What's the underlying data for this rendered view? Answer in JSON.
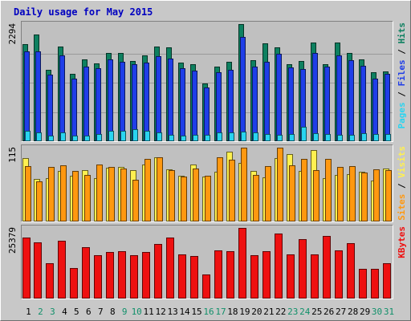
{
  "chart_data": {
    "type": "bar",
    "title": "Daily usage for May 2015",
    "colors": {
      "title": "#0000c0",
      "hits": "#0e8060",
      "files": "#1f3ee8",
      "pages": "#29d4f0",
      "visits": "#fff050",
      "sites": "#ff9810",
      "kbytes": "#ee1010",
      "weekday_label": "#000000",
      "weekend_label": "#11906a",
      "plot_bg": "#c0c0c0",
      "frame_bg": "#c8c8c8"
    },
    "days": [
      "1",
      "2",
      "3",
      "4",
      "5",
      "6",
      "7",
      "8",
      "9",
      "10",
      "11",
      "12",
      "13",
      "14",
      "15",
      "16",
      "17",
      "18",
      "19",
      "20",
      "21",
      "22",
      "23",
      "24",
      "25",
      "26",
      "27",
      "28",
      "29",
      "30",
      "31"
    ],
    "weekend_days": [
      "2",
      "3",
      "9",
      "10",
      "16",
      "17",
      "23",
      "24",
      "30",
      "31"
    ],
    "panels": [
      {
        "id": "hits-files-pages",
        "max_label": "2294",
        "legend": [
          {
            "text": "Pages",
            "color_key": "pages"
          },
          {
            "text": " / ",
            "color_key": "weekday_label"
          },
          {
            "text": "Files",
            "color_key": "files"
          },
          {
            "text": " / ",
            "color_key": "weekday_label"
          },
          {
            "text": "Hits",
            "color_key": "hits"
          }
        ],
        "ymax": 2294,
        "series": [
          {
            "key": "hits",
            "values": [
              1907,
              2094,
              1397,
              1860,
              1314,
              1595,
              1520,
              1735,
              1735,
              1571,
              1679,
              1855,
              1832,
              1533,
              1510,
              1137,
              1468,
              1550,
              2294,
              1580,
              1918,
              1835,
              1510,
              1567,
              1931,
              1514,
              1925,
              1729,
              1610,
              1353,
              1370
            ]
          },
          {
            "key": "files",
            "values": [
              1765,
              1758,
              1297,
              1689,
              1221,
              1461,
              1426,
              1602,
              1558,
              1510,
              1543,
              1662,
              1621,
              1434,
              1388,
              1055,
              1359,
              1397,
              2036,
              1468,
              1556,
              1710,
              1447,
              1414,
              1725,
              1454,
              1677,
              1586,
              1484,
              1229,
              1323
            ]
          },
          {
            "key": "pages",
            "values": [
              199,
              176,
              113,
              165,
              113,
              113,
              138,
              199,
              206,
              231,
              199,
              176,
              121,
              117,
              125,
              121,
              169,
              169,
              184,
              176,
              147,
              133,
              147,
              288,
              153,
              141,
              133,
              125,
              155,
              141,
              142
            ]
          }
        ]
      },
      {
        "id": "visits-sites",
        "max_label": "115",
        "legend": [
          {
            "text": "Sites",
            "color_key": "sites"
          },
          {
            "text": " / ",
            "color_key": "weekday_label"
          },
          {
            "text": "Visits",
            "color_key": "visits"
          }
        ],
        "ymax": 115,
        "series": [
          {
            "key": "visits",
            "values": [
              99,
              66,
              67,
              79,
              71,
              80,
              68,
              84,
              85,
              80,
              89,
              100,
              81,
              71,
              89,
              70,
              78,
              109,
              91,
              79,
              69,
              99,
              105,
              79,
              111,
              68,
              73,
              74,
              77,
              64,
              82
            ]
          },
          {
            "key": "sites",
            "values": [
              86,
              62,
              85,
              87,
              79,
              73,
              89,
              85,
              83,
              65,
              98,
              100,
              80,
              70,
              82,
              71,
              100,
              96,
              115,
              72,
              86,
              115,
              87,
              98,
              80,
              97,
              85,
              86,
              76,
              81,
              80
            ]
          }
        ]
      },
      {
        "id": "kbytes",
        "max_label": "25379",
        "legend": [
          {
            "text": "KBytes",
            "color_key": "kbytes"
          }
        ],
        "ymax": 25379,
        "series": [
          {
            "key": "kbytes",
            "values": [
              22000,
              20200,
              12800,
              20700,
              10900,
              18400,
              15700,
              16600,
              16900,
              15600,
              16800,
              19600,
              21900,
              15900,
              15400,
              8700,
              17200,
              17100,
              25379,
              15600,
              17100,
              23400,
              15900,
              21200,
              16000,
              22400,
              17400,
              20000,
              10600,
              10600,
              12700
            ]
          }
        ]
      }
    ]
  }
}
